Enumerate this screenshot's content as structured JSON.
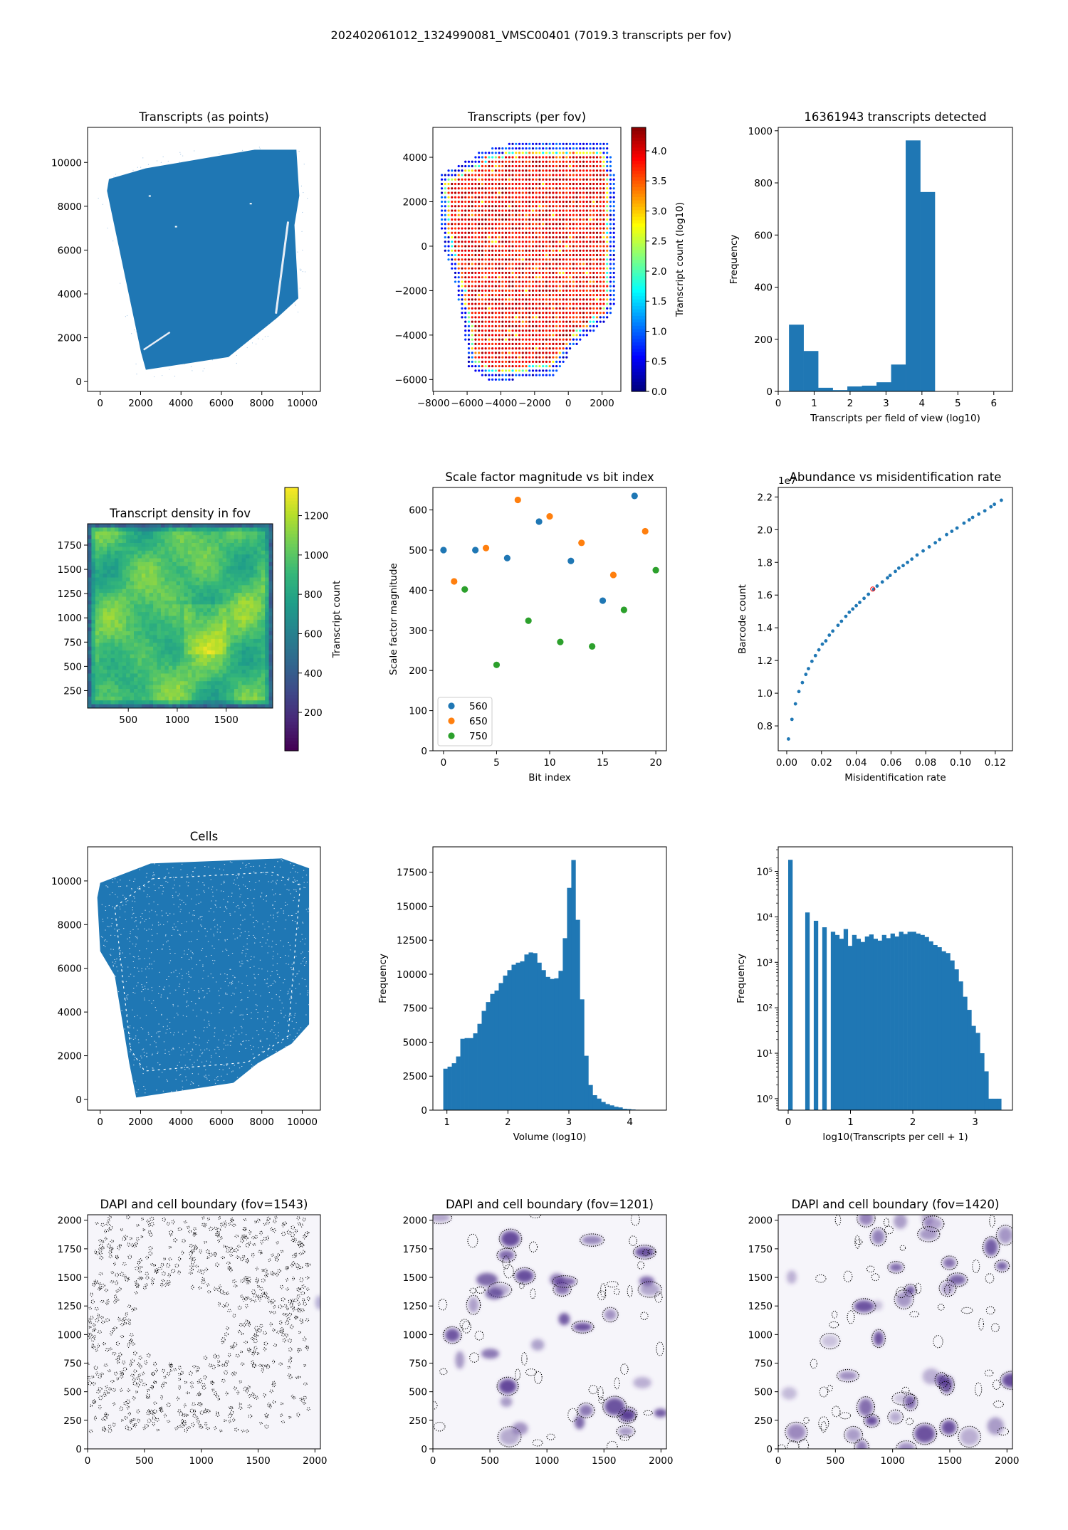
{
  "figure_title": "202402061012_1324990081_VMSC00401 (7019.3 transcripts per fov)",
  "colors": {
    "c560": "#1f77b4",
    "c650": "#ff7f0e",
    "c750": "#2ca02c",
    "bar": "#1f77b4",
    "highlight": "#ff0000"
  },
  "chart_data": [
    {
      "name": "transcripts-as-points",
      "type": "scatter",
      "title": "Transcripts (as points)",
      "xlabel": "",
      "ylabel": "",
      "xlim": [
        -625,
        10900
      ],
      "ylim": [
        -450,
        11600
      ],
      "xticks": [
        0,
        2000,
        4000,
        6000,
        8000,
        10000
      ],
      "xtick_labels": [
        "0",
        "2000",
        "4000",
        "6000",
        "8000",
        "10000"
      ],
      "yticks": [
        0,
        2000,
        4000,
        6000,
        8000,
        10000
      ],
      "ytick_labels": [
        "0",
        "2000",
        "4000",
        "6000",
        "8000",
        "10000"
      ]
    },
    {
      "name": "transcripts-per-fov",
      "type": "scatter",
      "title": "Transcripts (per fov)",
      "xlabel": "",
      "ylabel": "",
      "xlim": [
        -8030,
        3115
      ],
      "ylim": [
        -6534,
        5346
      ],
      "xticks": [
        -8000,
        -6000,
        -4000,
        -2000,
        0,
        2000
      ],
      "xtick_labels": [
        "−8000",
        "−6000",
        "−4000",
        "−2000",
        "0",
        "2000"
      ],
      "yticks": [
        -6000,
        -4000,
        -2000,
        0,
        2000,
        4000
      ],
      "ytick_labels": [
        "−6000",
        "−4000",
        "−2000",
        "0",
        "2000",
        "4000"
      ],
      "colorbar": {
        "label": "Transcript count (log10)",
        "range": [
          0,
          4.39
        ],
        "colormap": "jet",
        "ticks": [
          0,
          0.5,
          1,
          1.5,
          2,
          2.5,
          3,
          3.5,
          4
        ],
        "tick_labels": [
          "0.0",
          "0.5",
          "1.0",
          "1.5",
          "2.0",
          "2.5",
          "3.0",
          "3.5",
          "4.0"
        ]
      }
    },
    {
      "name": "transcripts-per-fov-histogram",
      "type": "bar",
      "title": "16361943 transcripts detected",
      "xlabel": "Transcripts per field of view (log10)",
      "ylabel": "Frequency",
      "xlim": [
        0,
        6.52
      ],
      "ylim": [
        0,
        1013
      ],
      "bin_start": 0.3,
      "bin_width": 0.406,
      "counts": [
        256,
        155,
        14,
        5,
        19,
        22,
        35,
        103,
        963,
        765
      ],
      "xticks": [
        0,
        1,
        2,
        3,
        4,
        5,
        6
      ],
      "xtick_labels": [
        "0",
        "1",
        "2",
        "3",
        "4",
        "5",
        "6"
      ],
      "yticks": [
        0,
        200,
        400,
        600,
        800,
        1000
      ],
      "ytick_labels": [
        "0",
        "200",
        "400",
        "600",
        "800",
        "1000"
      ]
    },
    {
      "name": "transcript-density-in-fov",
      "type": "heatmap",
      "title": "Transcript density in fov",
      "xlabel": "",
      "ylabel": "",
      "xlim": [
        84,
        1975
      ],
      "ylim": [
        70,
        1970
      ],
      "xticks": [
        500,
        1000,
        1500
      ],
      "xtick_labels": [
        "500",
        "1000",
        "1500"
      ],
      "yticks": [
        250,
        500,
        750,
        1000,
        1250,
        1500,
        1750
      ],
      "ytick_labels": [
        "250",
        "500",
        "750",
        "1000",
        "1250",
        "1500",
        "1750"
      ],
      "colorbar": {
        "label": "Transcript count",
        "range": [
          5,
          1343
        ],
        "colormap": "viridis",
        "ticks": [
          200,
          400,
          600,
          800,
          1000,
          1200
        ],
        "tick_labels": [
          "200",
          "400",
          "600",
          "800",
          "1000",
          "1200"
        ]
      }
    },
    {
      "name": "scale-factor-vs-bit-index",
      "type": "scatter",
      "title": "Scale factor magnitude vs bit index",
      "xlabel": "Bit index",
      "ylabel": "Scale factor magnitude",
      "xlim": [
        -1.0,
        21.0
      ],
      "ylim": [
        0,
        656
      ],
      "legend_position": "lower-left",
      "series": [
        {
          "name": "560",
          "color": "#1f77b4",
          "x": [
            0,
            3,
            6,
            9,
            12,
            15,
            18
          ],
          "y": [
            500,
            500,
            480,
            571,
            473,
            374,
            635
          ]
        },
        {
          "name": "650",
          "color": "#ff7f0e",
          "x": [
            1,
            4,
            7,
            10,
            13,
            16,
            19
          ],
          "y": [
            422,
            505,
            625,
            584,
            518,
            438,
            547
          ]
        },
        {
          "name": "750",
          "color": "#2ca02c",
          "x": [
            2,
            5,
            8,
            11,
            14,
            17,
            20
          ],
          "y": [
            402,
            214,
            324,
            271,
            260,
            351,
            450
          ]
        }
      ],
      "xticks": [
        0,
        5,
        10,
        15,
        20
      ],
      "xtick_labels": [
        "0",
        "5",
        "10",
        "15",
        "20"
      ],
      "yticks": [
        0,
        100,
        200,
        300,
        400,
        500,
        600
      ],
      "ytick_labels": [
        "0",
        "100",
        "200",
        "300",
        "400",
        "500",
        "600"
      ]
    },
    {
      "name": "abundance-vs-misidentification",
      "type": "scatter",
      "title": "Abundance vs misidentification rate",
      "xlabel": "Misidentification rate",
      "ylabel": "Barcode count",
      "offset_text": "1e7",
      "xlim": [
        -0.0049,
        0.1299
      ],
      "ylim": [
        0.648,
        2.258
      ],
      "x": [
        0.001,
        0.003,
        0.005,
        0.007,
        0.009,
        0.011,
        0.0125,
        0.0145,
        0.0165,
        0.0185,
        0.0205,
        0.0225,
        0.0245,
        0.0265,
        0.0295,
        0.0315,
        0.034,
        0.036,
        0.038,
        0.04,
        0.042,
        0.0445,
        0.047,
        0.05,
        0.052,
        0.055,
        0.058,
        0.0595,
        0.0625,
        0.0645,
        0.067,
        0.0695,
        0.072,
        0.075,
        0.0785,
        0.082,
        0.0855,
        0.088,
        0.092,
        0.095,
        0.098,
        0.102,
        0.105,
        0.107,
        0.1105,
        0.114,
        0.1175,
        0.1195,
        0.1235
      ],
      "y": [
        0.72,
        0.84,
        0.935,
        1.01,
        1.065,
        1.115,
        1.15,
        1.195,
        1.23,
        1.265,
        1.3,
        1.32,
        1.355,
        1.38,
        1.415,
        1.44,
        1.47,
        1.495,
        1.515,
        1.535,
        1.555,
        1.58,
        1.605,
        1.635,
        1.655,
        1.68,
        1.705,
        1.72,
        1.745,
        1.765,
        1.78,
        1.8,
        1.82,
        1.845,
        1.87,
        1.895,
        1.92,
        1.94,
        1.97,
        1.99,
        2.01,
        2.04,
        2.06,
        2.075,
        2.095,
        2.115,
        2.14,
        2.155,
        2.18
      ],
      "highlight": {
        "x": 0.0495,
        "y": 1.637
      },
      "xticks": [
        0,
        0.02,
        0.04,
        0.06,
        0.08,
        0.1,
        0.12
      ],
      "xtick_labels": [
        "0.00",
        "0.02",
        "0.04",
        "0.06",
        "0.08",
        "0.10",
        "0.12"
      ],
      "yticks": [
        0.8,
        1.0,
        1.2,
        1.4,
        1.6,
        1.8,
        2.0,
        2.2
      ],
      "ytick_labels": [
        "0.8",
        "1.0",
        "1.2",
        "1.4",
        "1.6",
        "1.8",
        "2.0",
        "2.2"
      ]
    },
    {
      "name": "cells",
      "type": "scatter",
      "title": "Cells",
      "xlabel": "",
      "ylabel": "",
      "xlim": [
        -625,
        10900
      ],
      "ylim": [
        -490,
        11560
      ],
      "xticks": [
        0,
        2000,
        4000,
        6000,
        8000,
        10000
      ],
      "xtick_labels": [
        "0",
        "2000",
        "4000",
        "6000",
        "8000",
        "10000"
      ],
      "yticks": [
        0,
        2000,
        4000,
        6000,
        8000,
        10000
      ],
      "ytick_labels": [
        "0",
        "2000",
        "4000",
        "6000",
        "8000",
        "10000"
      ]
    },
    {
      "name": "cell-volume-histogram",
      "type": "bar",
      "title": "",
      "xlabel": "Volume (log10)",
      "ylabel": "Frequency",
      "xlim": [
        0.77,
        4.6
      ],
      "ylim": [
        0,
        19370
      ],
      "bin_start": 0.94,
      "bin_width": 0.07,
      "counts": [
        3050,
        3200,
        3450,
        3950,
        5250,
        5300,
        5300,
        5650,
        6350,
        7300,
        7950,
        8550,
        8800,
        9350,
        9900,
        10300,
        10700,
        10850,
        10950,
        11450,
        11600,
        11550,
        10850,
        10300,
        9800,
        9650,
        9700,
        10250,
        12650,
        16350,
        18400,
        14000,
        8150,
        4000,
        1850,
        1100,
        850,
        600,
        450,
        350,
        250,
        200,
        100,
        80,
        50,
        30,
        20,
        10,
        5,
        3
      ],
      "xticks": [
        1,
        2,
        3,
        4
      ],
      "xtick_labels": [
        "1",
        "2",
        "3",
        "4"
      ],
      "yticks": [
        0,
        2500,
        5000,
        7500,
        10000,
        12500,
        15000,
        17500
      ],
      "ytick_labels": [
        "0",
        "2500",
        "5000",
        "7500",
        "10000",
        "12500",
        "15000",
        "17500"
      ]
    },
    {
      "name": "transcripts-per-cell-histogram",
      "type": "bar",
      "title": "",
      "xlabel": "log10(Transcripts per cell + 1)",
      "ylabel": "Frequency",
      "ylog": true,
      "xlim": [
        -0.16,
        3.6
      ],
      "ylim": [
        0.56,
        347000
      ],
      "bin_start": 0,
      "bin_width": 0.0684,
      "counts": [
        180000,
        0,
        0,
        0,
        12500,
        0,
        8200,
        0,
        5900,
        0,
        4700,
        4000,
        3300,
        5400,
        2300,
        4000,
        3300,
        2800,
        3700,
        4100,
        3300,
        3000,
        4000,
        3400,
        4300,
        3700,
        4700,
        4200,
        4700,
        4700,
        4300,
        4000,
        3600,
        2900,
        2400,
        2150,
        1750,
        1600,
        1100,
        700,
        380,
        175,
        90,
        40,
        28,
        10,
        4,
        1,
        1,
        1
      ],
      "xticks": [
        0,
        1,
        2,
        3
      ],
      "xtick_labels": [
        "0",
        "1",
        "2",
        "3"
      ],
      "yticks": [
        1,
        10,
        100,
        1000,
        10000,
        100000
      ],
      "ytick_labels": [
        "10⁰",
        "10¹",
        "10²",
        "10³",
        "10⁴",
        "10⁵"
      ]
    },
    {
      "name": "dapi-fov-1543",
      "type": "heatmap",
      "title": "DAPI and cell boundary (fov=1543)",
      "xlabel": "",
      "ylabel": "",
      "xlim": [
        0,
        2048
      ],
      "ylim": [
        0,
        2048
      ],
      "xticks": [
        0,
        500,
        1000,
        1500,
        2000
      ],
      "xtick_labels": [
        "0",
        "500",
        "1000",
        "1500",
        "2000"
      ],
      "yticks": [
        0,
        250,
        500,
        750,
        1000,
        1250,
        1500,
        1750,
        2000
      ],
      "ytick_labels": [
        "0",
        "250",
        "500",
        "750",
        "1000",
        "1250",
        "1500",
        "1750",
        "2000"
      ]
    },
    {
      "name": "dapi-fov-1201",
      "type": "heatmap",
      "title": "DAPI and cell boundary (fov=1201)",
      "xlabel": "",
      "ylabel": "",
      "xlim": [
        0,
        2048
      ],
      "ylim": [
        0,
        2048
      ],
      "xticks": [
        0,
        500,
        1000,
        1500,
        2000
      ],
      "xtick_labels": [
        "0",
        "500",
        "1000",
        "1500",
        "2000"
      ],
      "yticks": [
        0,
        250,
        500,
        750,
        1000,
        1250,
        1500,
        1750,
        2000
      ],
      "ytick_labels": [
        "0",
        "250",
        "500",
        "750",
        "1000",
        "1250",
        "1500",
        "1750",
        "2000"
      ]
    },
    {
      "name": "dapi-fov-1420",
      "type": "heatmap",
      "title": "DAPI and cell boundary (fov=1420)",
      "xlabel": "",
      "ylabel": "",
      "xlim": [
        0,
        2048
      ],
      "ylim": [
        0,
        2048
      ],
      "xticks": [
        0,
        500,
        1000,
        1500,
        2000
      ],
      "xtick_labels": [
        "0",
        "500",
        "1000",
        "1500",
        "2000"
      ],
      "yticks": [
        0,
        250,
        500,
        750,
        1000,
        1250,
        1500,
        1750,
        2000
      ],
      "ytick_labels": [
        "0",
        "250",
        "500",
        "750",
        "1000",
        "1250",
        "1500",
        "1750",
        "2000"
      ]
    }
  ]
}
